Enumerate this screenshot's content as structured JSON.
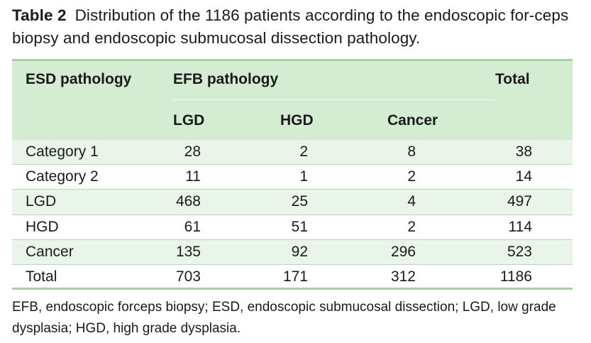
{
  "caption": {
    "label": "Table 2",
    "text": "Distribution of the 1186 patients according to the endoscopic for-ceps biopsy and endoscopic submucosal dissection pathology."
  },
  "table": {
    "header": {
      "esd": "ESD pathology",
      "efb": "EFB pathology",
      "total": "Total",
      "sub": [
        "LGD",
        "HGD",
        "Cancer"
      ]
    },
    "rows": [
      {
        "label": "Category 1",
        "lgd": "28",
        "hgd": "2",
        "cancer": "8",
        "total": "38"
      },
      {
        "label": "Category 2",
        "lgd": "11",
        "hgd": "1",
        "cancer": "2",
        "total": "14"
      },
      {
        "label": "LGD",
        "lgd": "468",
        "hgd": "25",
        "cancer": "4",
        "total": "497"
      },
      {
        "label": "HGD",
        "lgd": "61",
        "hgd": "51",
        "cancer": "2",
        "total": "114"
      },
      {
        "label": "Cancer",
        "lgd": "135",
        "hgd": "92",
        "cancer": "296",
        "total": "523"
      },
      {
        "label": "Total",
        "lgd": "703",
        "hgd": "171",
        "cancer": "312",
        "total": "1186"
      }
    ]
  },
  "footnote": "EFB, endoscopic forceps biopsy; ESD, endoscopic submucosal dissection; LGD, low grade dysplasia; HGD, high grade dysplasia.",
  "colors": {
    "header_bg": "#d4ecd1",
    "row_alt_bg": "#eaf5e9",
    "rule": "#a6cfa3"
  }
}
